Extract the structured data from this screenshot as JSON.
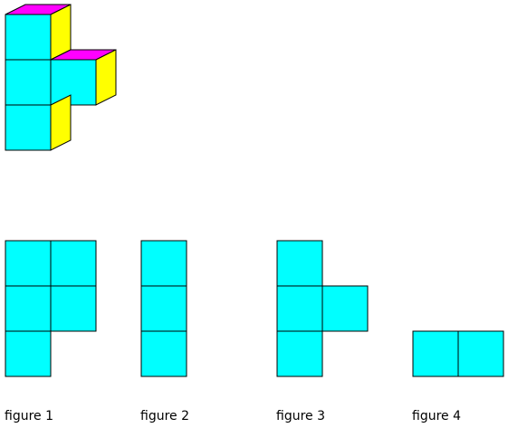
{
  "colors": {
    "front": "#00ffff",
    "top": "#ff00ff",
    "side": "#ffff00",
    "edge": "#000000",
    "background": "#ffffff"
  },
  "solid": {
    "description_visible": false,
    "columns": [
      {
        "col": 0,
        "height": 3
      },
      {
        "col": 1,
        "height": 1,
        "row": 1
      }
    ]
  },
  "views": [
    {
      "caption": "figure 1",
      "cells": [
        [
          0,
          0
        ],
        [
          1,
          0
        ],
        [
          0,
          1
        ],
        [
          1,
          1
        ],
        [
          0,
          2
        ]
      ]
    },
    {
      "caption": "figure 2",
      "cells": [
        [
          0,
          0
        ],
        [
          0,
          1
        ],
        [
          0,
          2
        ]
      ]
    },
    {
      "caption": "figure 3",
      "cells": [
        [
          0,
          0
        ],
        [
          0,
          1
        ],
        [
          1,
          1
        ],
        [
          0,
          2
        ]
      ]
    },
    {
      "caption": "figure 4",
      "cells": [
        [
          0,
          0
        ],
        [
          1,
          0
        ]
      ]
    }
  ]
}
